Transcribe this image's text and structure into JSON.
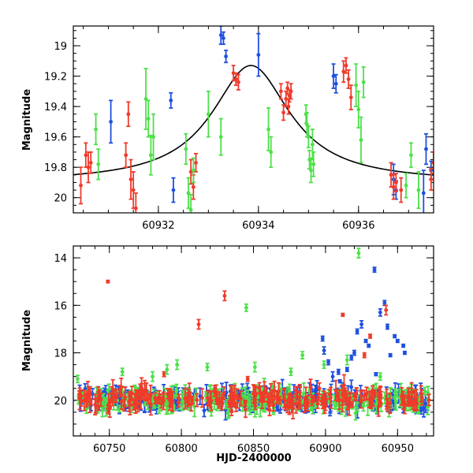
{
  "colors": {
    "blue": "#1f4fe0",
    "red": "#f03a2a",
    "green": "#4ee04a",
    "model": "#000000"
  },
  "chart_data": [
    {
      "type": "scatter",
      "panel": "top",
      "title": "",
      "xlabel": "",
      "ylabel": "Magnitude",
      "xlim": [
        60930.3,
        60937.5
      ],
      "ylim": [
        20.1,
        18.87
      ],
      "y_inverted": true,
      "xticks": [
        60932,
        60934,
        60936
      ],
      "yticks": [
        19,
        19.2,
        19.4,
        19.6,
        19.8,
        20
      ],
      "xtick_labels": [
        "60932",
        "60934",
        "60936"
      ],
      "ytick_labels": [
        "19",
        "19.2",
        "19.4",
        "19.6",
        "19.8",
        "20"
      ],
      "model_curve": {
        "name": "Lorentzian fit",
        "t0": 60933.85,
        "peak_mag": 19.13,
        "base_mag": 19.9,
        "width": 0.95
      },
      "series": [
        {
          "name": "blue",
          "color": "blue",
          "points": [
            [
              60931.05,
              19.5,
              0.14
            ],
            [
              60932.25,
              19.36,
              0.05
            ],
            [
              60932.3,
              19.95,
              0.08
            ],
            [
              60933.25,
              18.93,
              0.06
            ],
            [
              60933.3,
              18.95,
              0.04
            ],
            [
              60933.35,
              19.07,
              0.04
            ],
            [
              60934.0,
              19.06,
              0.14
            ],
            [
              60935.5,
              19.2,
              0.08
            ],
            [
              60935.55,
              19.25,
              0.06
            ],
            [
              60936.7,
              19.88,
              0.1
            ],
            [
              60936.75,
              19.95,
              0.06
            ],
            [
              60937.3,
              19.97,
              0.15
            ],
            [
              60937.35,
              19.68,
              0.1
            ],
            [
              60937.45,
              19.82,
              0.06
            ]
          ]
        },
        {
          "name": "red",
          "color": "red",
          "points": [
            [
              60930.45,
              19.92,
              0.12
            ],
            [
              60930.55,
              19.72,
              0.08
            ],
            [
              60930.6,
              19.8,
              0.1
            ],
            [
              60930.65,
              19.77,
              0.07
            ],
            [
              60931.35,
              19.72,
              0.08
            ],
            [
              60931.4,
              19.45,
              0.08
            ],
            [
              60931.45,
              19.88,
              0.13
            ],
            [
              60931.5,
              19.95,
              0.12
            ],
            [
              60931.55,
              20.07,
              0.1
            ],
            [
              60932.65,
              19.83,
              0.08
            ],
            [
              60932.7,
              19.93,
              0.08
            ],
            [
              60932.75,
              19.77,
              0.06
            ],
            [
              60933.5,
              19.18,
              0.05
            ],
            [
              60933.55,
              19.22,
              0.04
            ],
            [
              60933.6,
              19.24,
              0.05
            ],
            [
              60934.45,
              19.3,
              0.05
            ],
            [
              60934.5,
              19.44,
              0.05
            ],
            [
              60934.55,
              19.35,
              0.05
            ],
            [
              60934.58,
              19.28,
              0.04
            ],
            [
              60934.6,
              19.4,
              0.05
            ],
            [
              60934.62,
              19.33,
              0.04
            ],
            [
              60934.65,
              19.3,
              0.05
            ],
            [
              60935.7,
              19.17,
              0.07
            ],
            [
              60935.75,
              19.13,
              0.05
            ],
            [
              60935.8,
              19.22,
              0.06
            ],
            [
              60935.85,
              19.34,
              0.08
            ],
            [
              60936.65,
              19.85,
              0.08
            ],
            [
              60936.7,
              19.93,
              0.08
            ],
            [
              60936.75,
              19.9,
              0.06
            ],
            [
              60936.85,
              19.95,
              0.08
            ],
            [
              60937.45,
              19.88,
              0.07
            ],
            [
              60937.5,
              19.77,
              0.07
            ]
          ]
        },
        {
          "name": "green",
          "color": "green",
          "points": [
            [
              60930.75,
              19.55,
              0.1
            ],
            [
              60930.8,
              19.78,
              0.1
            ],
            [
              60931.75,
              19.35,
              0.2
            ],
            [
              60931.8,
              19.48,
              0.12
            ],
            [
              60931.85,
              19.72,
              0.13
            ],
            [
              60931.9,
              19.6,
              0.15
            ],
            [
              60932.55,
              19.68,
              0.1
            ],
            [
              60932.6,
              19.97,
              0.1
            ],
            [
              60932.65,
              20.08,
              0.1
            ],
            [
              60932.7,
              19.82,
              0.08
            ],
            [
              60933.0,
              19.45,
              0.15
            ],
            [
              60933.25,
              19.6,
              0.12
            ],
            [
              60934.2,
              19.55,
              0.14
            ],
            [
              60934.25,
              19.7,
              0.1
            ],
            [
              60934.95,
              19.45,
              0.06
            ],
            [
              60934.97,
              19.52,
              0.08
            ],
            [
              60935.0,
              19.6,
              0.07
            ],
            [
              60935.02,
              19.75,
              0.06
            ],
            [
              60935.05,
              19.82,
              0.08
            ],
            [
              60935.08,
              19.65,
              0.1
            ],
            [
              60935.1,
              19.78,
              0.08
            ],
            [
              60935.95,
              19.26,
              0.14
            ],
            [
              60936.0,
              19.42,
              0.12
            ],
            [
              60936.05,
              19.62,
              0.15
            ],
            [
              60936.1,
              19.24,
              0.1
            ],
            [
              60936.95,
              19.92,
              0.08
            ],
            [
              60937.05,
              19.72,
              0.08
            ],
            [
              60937.2,
              19.95,
              0.12
            ]
          ]
        }
      ]
    },
    {
      "type": "scatter",
      "panel": "bottom",
      "title": "",
      "xlabel": "HJD-2400000",
      "ylabel": "Magnitude",
      "xlim": [
        60725,
        60975
      ],
      "ylim": [
        21.5,
        13.5
      ],
      "y_inverted": true,
      "xticks": [
        60750,
        60800,
        60850,
        60900,
        60950
      ],
      "yticks": [
        14,
        16,
        18,
        20
      ],
      "xtick_labels": [
        "60750",
        "60800",
        "60850",
        "60900",
        "60950"
      ],
      "ytick_labels": [
        "14",
        "16",
        "18",
        "20"
      ],
      "baseline_band": {
        "x_start": 60728,
        "x_end": 60972,
        "mean_mag": 19.95,
        "scatter": 0.35,
        "n_points_per_series": 230
      },
      "series": [
        {
          "name": "blue",
          "color": "blue",
          "points": [
            [
              60898,
              17.4,
              0.1
            ],
            [
              60899,
              17.9,
              0.15
            ],
            [
              60902,
              18.4,
              0.1
            ],
            [
              60905,
              19.0,
              0.2
            ],
            [
              60915,
              18.7,
              0.08
            ],
            [
              60918,
              18.2,
              0.1
            ],
            [
              60920,
              18.0,
              0.1
            ],
            [
              60922,
              17.1,
              0.1
            ],
            [
              60925,
              16.8,
              0.15
            ],
            [
              60928,
              17.5,
              0.06
            ],
            [
              60930,
              17.7,
              0.06
            ],
            [
              60934,
              14.5,
              0.1
            ],
            [
              60938,
              16.3,
              0.15
            ],
            [
              60941,
              15.9,
              0.1
            ],
            [
              60943,
              16.9,
              0.1
            ],
            [
              60945,
              18.1,
              0.06
            ],
            [
              60948,
              17.3,
              0.06
            ],
            [
              60950,
              17.5,
              0.06
            ],
            [
              60954,
              17.7,
              0.06
            ],
            [
              60955,
              18.0,
              0.06
            ],
            [
              60909,
              18.8,
              0.1
            ],
            [
              60935,
              18.9,
              0.06
            ],
            [
              60910,
              19.2,
              0.06
            ]
          ]
        },
        {
          "name": "red",
          "color": "red",
          "points": [
            [
              60749,
              15.0,
              0.05
            ],
            [
              60812,
              16.8,
              0.2
            ],
            [
              60830,
              15.6,
              0.2
            ],
            [
              60912,
              16.4,
              0.06
            ],
            [
              60942,
              16.2,
              0.2
            ],
            [
              60931,
              17.3,
              0.08
            ],
            [
              60927,
              18.1,
              0.1
            ],
            [
              60788,
              18.9,
              0.1
            ],
            [
              60846,
              19.1,
              0.1
            ]
          ]
        },
        {
          "name": "green",
          "color": "green",
          "points": [
            [
              60728,
              19.1,
              0.15
            ],
            [
              60759,
              18.8,
              0.15
            ],
            [
              60790,
              18.7,
              0.2
            ],
            [
              60797,
              18.5,
              0.2
            ],
            [
              60818,
              18.6,
              0.15
            ],
            [
              60845,
              16.1,
              0.15
            ],
            [
              60851,
              18.6,
              0.2
            ],
            [
              60884,
              18.1,
              0.15
            ],
            [
              60899,
              18.5,
              0.15
            ],
            [
              60915,
              18.3,
              0.2
            ],
            [
              60923,
              13.8,
              0.2
            ],
            [
              60938,
              19.0,
              0.15
            ],
            [
              60876,
              18.8,
              0.15
            ],
            [
              60780,
              19.0,
              0.2
            ]
          ]
        }
      ]
    }
  ]
}
